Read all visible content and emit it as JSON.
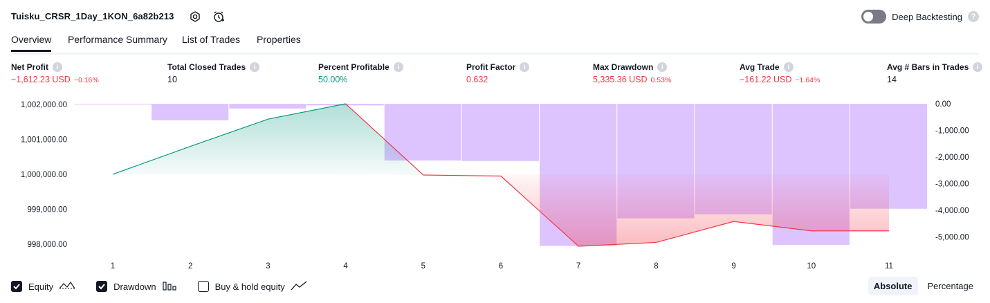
{
  "header": {
    "title": "Tuisku_CRSR_1Day_1KON_6a82b213",
    "icons": [
      "settings-icon",
      "alert-icon"
    ],
    "deep_backtesting_label": "Deep Backtesting",
    "deep_backtesting_on": false,
    "help_glyph": "?"
  },
  "tabs": [
    {
      "label": "Overview",
      "active": true
    },
    {
      "label": "Performance Summary",
      "active": false
    },
    {
      "label": "List of Trades",
      "active": false
    },
    {
      "label": "Properties",
      "active": false
    }
  ],
  "stats": [
    {
      "label": "Net Profit",
      "value": "−1,612.23 USD",
      "sub": "−0.16%",
      "tone": "neg"
    },
    {
      "label": "Total Closed Trades",
      "value": "10",
      "sub": "",
      "tone": "neu"
    },
    {
      "label": "Percent Profitable",
      "value": "50.00%",
      "sub": "",
      "tone": "pos"
    },
    {
      "label": "Profit Factor",
      "value": "0.632",
      "sub": "",
      "tone": "neg"
    },
    {
      "label": "Max Drawdown",
      "value": "5,335.36 USD",
      "sub": "0.53%",
      "tone": "neg"
    },
    {
      "label": "Avg Trade",
      "value": "−161.22 USD",
      "sub": "−1.64%",
      "tone": "neg"
    },
    {
      "label": "Avg # Bars in Trades",
      "value": "14",
      "sub": "",
      "tone": "neu"
    }
  ],
  "chart_data": {
    "type": "line",
    "x": [
      1,
      2,
      3,
      4,
      5,
      6,
      7,
      8,
      9,
      10,
      11
    ],
    "series": [
      {
        "values": [
          1000000,
          1000800,
          1001580,
          1002020,
          999980,
          999950,
          997940,
          998050,
          998650,
          998380,
          998380
        ],
        "color": "#089981",
        "axis": "left"
      },
      {
        "values": [
          -20,
          -620,
          -180,
          -60,
          -2130,
          -2150,
          -5335,
          -4300,
          -4150,
          -5300,
          -3940
        ],
        "color": "#c9a0ff",
        "axis": "right",
        "type": "bar"
      }
    ],
    "left_ticks": [
      "1,002,000.00",
      "1,001,000.00",
      "1,000,000.00",
      "999,000.00",
      "998,000.00"
    ],
    "left_tick_values": [
      1002000,
      1001000,
      1000000,
      999000,
      998000
    ],
    "right_ticks": [
      "0.00",
      "-1,000.00",
      "-2,000.00",
      "-3,000.00",
      "-4,000.00",
      "-5,000.00"
    ],
    "right_tick_values": [
      0,
      -1000,
      -2000,
      -3000,
      -4000,
      -5000
    ],
    "baseline": 1000000,
    "ylim_left": [
      997900,
      1002020
    ],
    "ylim_right": [
      -5400,
      0
    ]
  },
  "legend": [
    {
      "label": "Equity",
      "checked": true,
      "icon": "equity-line-icon"
    },
    {
      "label": "Drawdown",
      "checked": true,
      "icon": "bar-chart-icon"
    },
    {
      "label": "Buy & hold equity",
      "checked": false,
      "icon": "trend-line-icon"
    }
  ],
  "modes": [
    {
      "label": "Absolute",
      "active": true
    },
    {
      "label": "Percentage",
      "active": false
    }
  ]
}
